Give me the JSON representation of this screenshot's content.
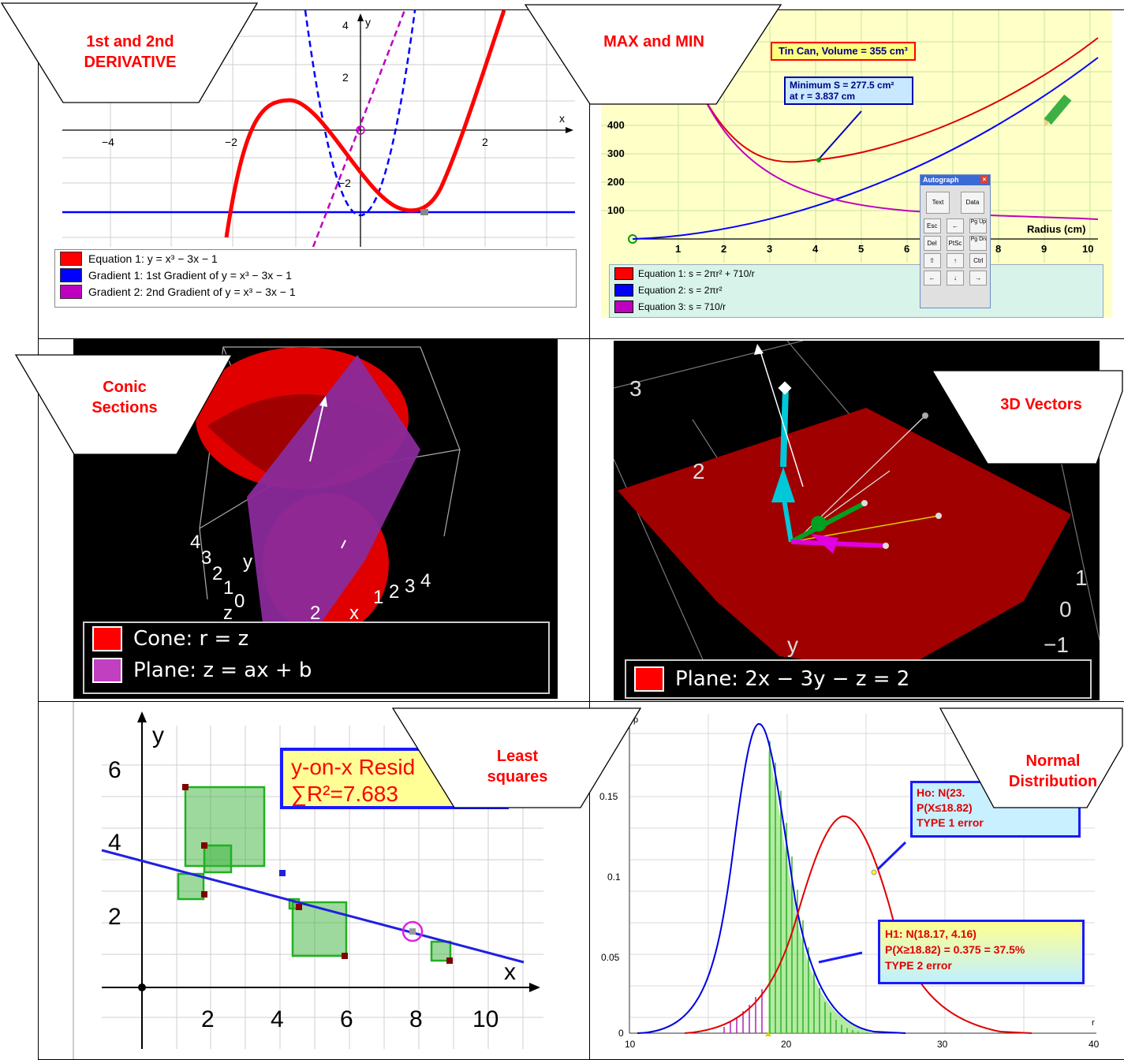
{
  "callouts": {
    "derivative": [
      "1st and 2nd",
      "DERIVATIVE"
    ],
    "maxmin": [
      "MAX and MIN"
    ],
    "conic": [
      "Conic",
      "Sections"
    ],
    "vectors3d": [
      "3D Vectors"
    ],
    "leastsq": [
      "Least",
      "squares"
    ],
    "normal": [
      "Normal",
      "Distribution"
    ]
  },
  "panel_derivative": {
    "legend": [
      {
        "color": "#ff0000",
        "text": "Equation 1: y = x³ − 3x − 1"
      },
      {
        "color": "#0000ff",
        "text": "Gradient 1: 1st Gradient of y = x³ − 3x − 1"
      },
      {
        "color": "#c000c0",
        "text": "Gradient 2: 2nd Gradient of y = x³ − 3x − 1"
      }
    ],
    "x_label": "x",
    "y_label": "y",
    "x_ticks": [
      "−4",
      "−2",
      "2"
    ],
    "y_ticks": [
      "4",
      "2",
      "−2"
    ]
  },
  "panel_maxmin": {
    "title_box": "Tin Can, Volume = 355 cm³",
    "min_box": [
      "Minimum S = 277.5 cm²",
      "at r = 3.837 cm"
    ],
    "y_ticks": [
      "400",
      "300",
      "200",
      "100"
    ],
    "x_ticks": [
      "1",
      "2",
      "3",
      "4",
      "5",
      "6",
      "7",
      "8",
      "9",
      "10"
    ],
    "x_label": "Radius (cm)",
    "legend": [
      {
        "color": "#ff0000",
        "text": "Equation 1: s = 2πr² + 710/r"
      },
      {
        "color": "#0000ff",
        "text": "Equation 2: s = 2πr²"
      },
      {
        "color": "#c000c0",
        "text": "Equation 3: s = 710/r"
      }
    ],
    "toolbox": {
      "title": "Autograph",
      "row1": [
        "Text",
        "Data"
      ],
      "row2": [
        "Esc",
        "←",
        "Pg Up"
      ],
      "row3": [
        "Del",
        "PtSc",
        "Pg Dn"
      ],
      "row4": [
        "⇧",
        "↑",
        "Ctrl"
      ],
      "row5": [
        "←",
        "↓",
        "→"
      ]
    }
  },
  "panel_conic": {
    "legend": [
      {
        "color": "#ff0000",
        "text": "Cone: r = z"
      },
      {
        "color": "#c040c0",
        "text": "Plane: z = ax + b"
      }
    ],
    "axis_text": [
      "4",
      "3",
      "2",
      "1",
      "0",
      "y",
      "1",
      "2",
      "3",
      "4",
      "z",
      "2",
      "x"
    ]
  },
  "panel_vectors": {
    "legend": [
      {
        "color": "#ff0000",
        "text": "Plane: 2x − 3y − z = 2"
      }
    ],
    "axis_nums": [
      "3",
      "2",
      "1",
      "0",
      "−1",
      "y"
    ]
  },
  "panel_leastsq": {
    "box": [
      "y-on-x Resid",
      "∑R²=7.683"
    ],
    "x_label": "x",
    "y_label": "y",
    "x_ticks": [
      "2",
      "4",
      "6",
      "8",
      "10"
    ],
    "y_ticks": [
      "6",
      "4",
      "2"
    ]
  },
  "panel_normal": {
    "y_label": "p",
    "x_label": "r",
    "y_ticks": [
      "0.15",
      "0.1",
      "0.05",
      "0"
    ],
    "x_ticks": [
      "10",
      "20",
      "30",
      "40"
    ],
    "h0_box": [
      "Ho: N(23.",
      "P(X≤18.82)",
      "TYPE 1 error"
    ],
    "h1_box": [
      "H1: N(18.17, 4.16)",
      "P(X≥18.82) = 0.375 = 37.5%",
      "TYPE 2 error"
    ]
  }
}
